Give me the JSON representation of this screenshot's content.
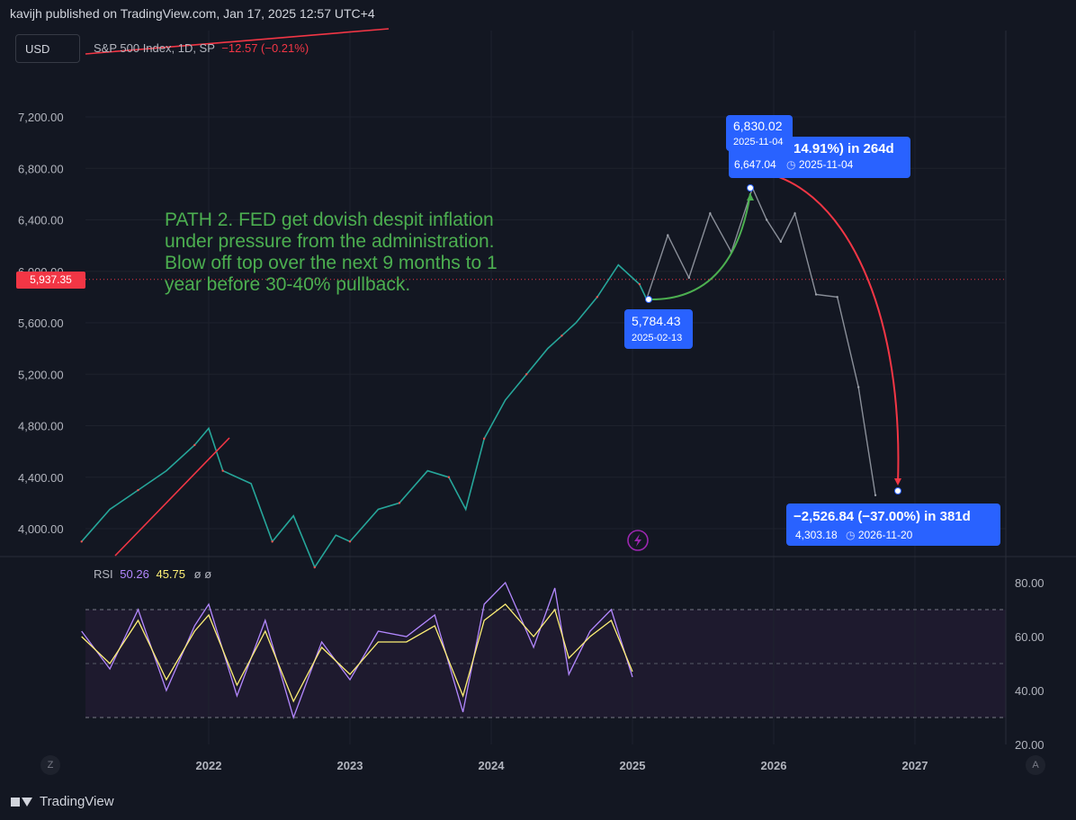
{
  "header": {
    "published": "kavijh published on TradingView.com, Jan 17, 2025 12:57 UTC+4"
  },
  "toolbar": {
    "currency": "USD"
  },
  "legend": {
    "symbol": "S&P 500 Index, 1D, SP",
    "change": "−12.57 (−0.21%)"
  },
  "rsi_legend": {
    "label": "RSI",
    "value1": "50.26",
    "value2": "45.75",
    "value3": "ø ø"
  },
  "annotation": {
    "text": "PATH 2. FED get dovish despit inflation\nunder pressure from the administration.\nBlow off top over the next 9 months to 1\nyear before 30-40% pullback."
  },
  "current_price": "5,937.35",
  "callouts": {
    "low_price": "5,784.43",
    "low_date": "2025-02-13",
    "high_price": "6,830.02",
    "high_date": "2025-11-04",
    "up_move": "14.91%) in 264d",
    "up_sub_price": "6,647.04",
    "up_sub_date": "2025-11-04",
    "down_move": "−2,526.84 (−37.00%) in 381d",
    "down_sub_price": "4,303.18",
    "down_sub_date": "2026-11-20"
  },
  "buttons": {
    "z": "Z",
    "a": "A"
  },
  "footer": {
    "brand": "TradingView"
  },
  "colors": {
    "background": "#131722",
    "up": "#26a69a",
    "down": "#ef5350",
    "rsi": "#b388ff",
    "rsi_ma": "#fff176",
    "box": "#2962ff",
    "curve_up": "#4caf50",
    "curve_down": "#f23645"
  },
  "chart_data": [
    {
      "type": "line",
      "title": "S&P 500 Index, 1D, SP",
      "ylim": [
        3800,
        7450
      ],
      "yticks": [
        "7,200.00",
        "6,800.00",
        "6,400.00",
        "6,000.00",
        "5,600.00",
        "5,200.00",
        "4,800.00",
        "4,400.00",
        "4,000.00"
      ],
      "xticks": [
        "2022",
        "2023",
        "2024",
        "2025",
        "2026",
        "2027"
      ],
      "x": [
        2021.1,
        2021.3,
        2021.5,
        2021.7,
        2021.9,
        2022.0,
        2022.1,
        2022.3,
        2022.45,
        2022.6,
        2022.75,
        2022.9,
        2023.0,
        2023.2,
        2023.35,
        2023.55,
        2023.7,
        2023.82,
        2023.95,
        2024.1,
        2024.25,
        2024.4,
        2024.5,
        2024.6,
        2024.75,
        2024.9,
        2025.05,
        2025.1,
        2025.25,
        2025.4,
        2025.55,
        2025.7,
        2025.85,
        2025.95,
        2026.05,
        2026.15,
        2026.3,
        2026.45,
        2026.6,
        2026.72
      ],
      "values": [
        3900,
        4150,
        4300,
        4450,
        4650,
        4780,
        4450,
        4350,
        3900,
        4100,
        3700,
        3950,
        3900,
        4150,
        4200,
        4450,
        4400,
        4150,
        4700,
        5000,
        5200,
        5400,
        5500,
        5600,
        5800,
        6050,
        5900,
        5784,
        6280,
        5950,
        6450,
        6150,
        6647,
        6400,
        6230,
        6450,
        5820,
        5800,
        5100,
        4260
      ],
      "projection_start": 2025.1
    },
    {
      "type": "line",
      "title": "RSI",
      "ylim": [
        20,
        85
      ],
      "yticks": [
        "80.00",
        "60.00",
        "40.00",
        "20.00"
      ],
      "bands": [
        70,
        30
      ],
      "mid": 50,
      "series": [
        {
          "name": "RSI",
          "x": [
            2021.1,
            2021.3,
            2021.5,
            2021.7,
            2021.9,
            2022.0,
            2022.2,
            2022.4,
            2022.6,
            2022.8,
            2023.0,
            2023.2,
            2023.4,
            2023.6,
            2023.8,
            2023.95,
            2024.1,
            2024.3,
            2024.45,
            2024.55,
            2024.7,
            2024.85,
            2025.0
          ],
          "values": [
            62,
            48,
            70,
            40,
            64,
            72,
            38,
            66,
            30,
            58,
            44,
            62,
            60,
            68,
            32,
            72,
            80,
            56,
            78,
            46,
            62,
            70,
            45
          ]
        },
        {
          "name": "RSI MA",
          "x": [
            2021.1,
            2021.3,
            2021.5,
            2021.7,
            2021.9,
            2022.0,
            2022.2,
            2022.4,
            2022.6,
            2022.8,
            2023.0,
            2023.2,
            2023.4,
            2023.6,
            2023.8,
            2023.95,
            2024.1,
            2024.3,
            2024.45,
            2024.55,
            2024.7,
            2024.85,
            2025.0
          ],
          "values": [
            60,
            50,
            66,
            44,
            62,
            68,
            42,
            62,
            36,
            56,
            46,
            58,
            58,
            64,
            38,
            66,
            72,
            60,
            70,
            52,
            60,
            66,
            47
          ]
        }
      ]
    }
  ]
}
